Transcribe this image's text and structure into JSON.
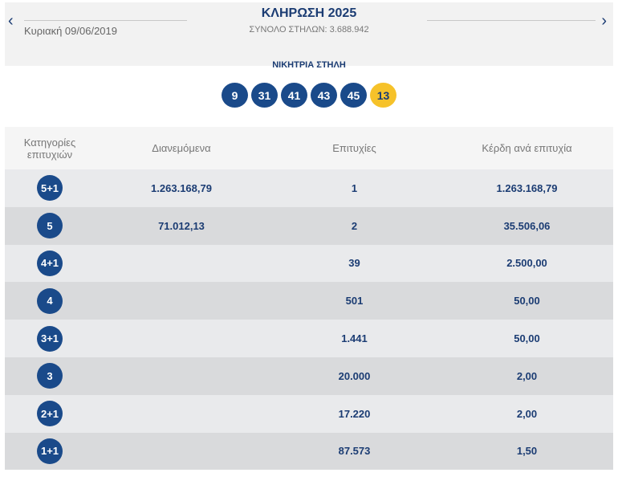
{
  "header": {
    "title": "ΚΛΗΡΩΣΗ 2025",
    "date": "Κυριακή 09/06/2019",
    "total": "ΣΥΝΟΛΟ ΣΤΗΛΩΝ: 3.688.942",
    "prev": "‹",
    "next": "›"
  },
  "winning": {
    "label": "ΝΙΚΗΤΡΙΑ ΣΤΗΛΗ",
    "numbers": [
      "9",
      "31",
      "41",
      "43",
      "45"
    ],
    "joker": "13"
  },
  "table": {
    "headers": [
      "Κατηγορίες επιτυχιών",
      "Διανεμόμενα",
      "Επιτυχίες",
      "Κέρδη ανά επιτυχία"
    ],
    "rows": [
      {
        "cat": "5+1",
        "dist": "1.263.168,79",
        "wins": "1",
        "prize": "1.263.168,79"
      },
      {
        "cat": "5",
        "dist": "71.012,13",
        "wins": "2",
        "prize": "35.506,06"
      },
      {
        "cat": "4+1",
        "dist": "",
        "wins": "39",
        "prize": "2.500,00"
      },
      {
        "cat": "4",
        "dist": "",
        "wins": "501",
        "prize": "50,00"
      },
      {
        "cat": "3+1",
        "dist": "",
        "wins": "1.441",
        "prize": "50,00"
      },
      {
        "cat": "3",
        "dist": "",
        "wins": "20.000",
        "prize": "2,00"
      },
      {
        "cat": "2+1",
        "dist": "",
        "wins": "17.220",
        "prize": "2,00"
      },
      {
        "cat": "1+1",
        "dist": "",
        "wins": "87.573",
        "prize": "1,50"
      }
    ]
  }
}
